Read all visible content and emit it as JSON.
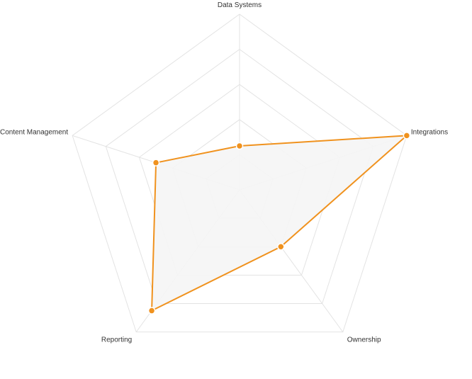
{
  "chart_data": {
    "type": "radar",
    "axes": [
      "Data Systems",
      "Integrations",
      "Ownership",
      "Reporting",
      "Content Management"
    ],
    "series": [
      {
        "values": [
          25,
          100,
          40,
          85,
          50
        ]
      }
    ],
    "rlim": [
      0,
      100
    ],
    "grid_levels": 5,
    "colors": {
      "series": "#f0921e",
      "fill": "#f5f5f5",
      "grid": "#e3e3e3",
      "label": "#333333"
    }
  }
}
